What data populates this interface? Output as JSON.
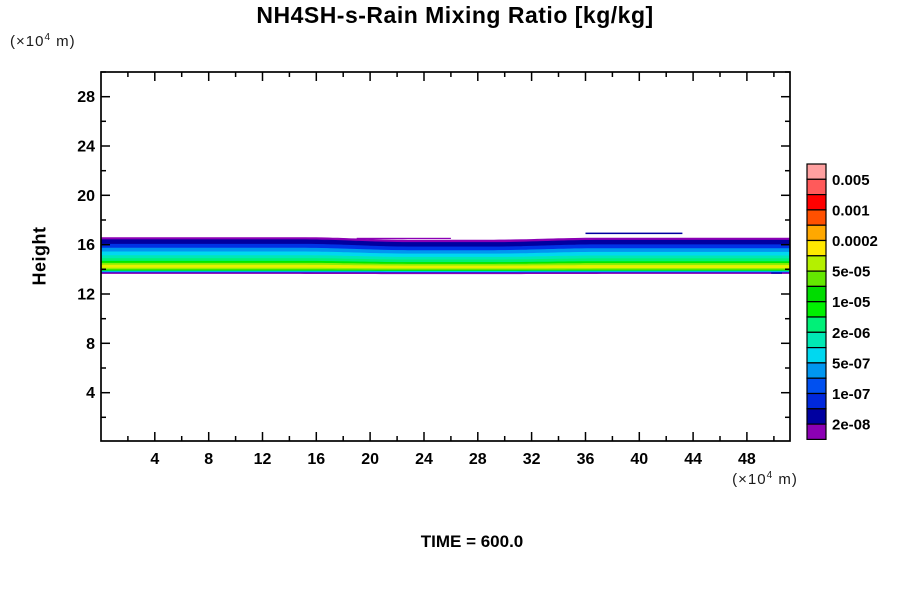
{
  "title": "NH4SH-s-Rain Mixing Ratio [kg/kg]",
  "time_label": "TIME = 600.0",
  "units": {
    "prefix": "(×10",
    "exponent": "4",
    "suffix": " m)"
  },
  "y_axis": {
    "label": "Height"
  },
  "chart_data": {
    "type": "contour",
    "title": "NH4SH-s-Rain Mixing Ratio [kg/kg]",
    "time": 600.0,
    "xlabel_units": "(×10^4 m)",
    "ylabel": "Height",
    "ylabel_units": "(×10^4 m)",
    "x_range": [
      0,
      51.2
    ],
    "y_range": [
      0,
      30
    ],
    "x_major_ticks": [
      4,
      8,
      12,
      16,
      20,
      24,
      28,
      32,
      36,
      40,
      44,
      48
    ],
    "x_minor_ticks": [
      2,
      6,
      10,
      14,
      18,
      22,
      26,
      30,
      34,
      38,
      42,
      46,
      50
    ],
    "y_major_ticks": [
      4,
      8,
      12,
      16,
      20,
      24,
      28
    ],
    "y_minor_ticks": [
      2,
      6,
      10,
      14,
      18,
      22,
      26,
      30
    ],
    "colorbar": {
      "position": "right",
      "labels": [
        "0.005",
        "0.001",
        "0.0002",
        "5e-05",
        "1e-05",
        "2e-06",
        "5e-07",
        "1e-07",
        "2e-08"
      ],
      "label_boundary_indices": [
        1,
        3,
        5,
        7,
        9,
        11,
        13,
        15,
        17
      ],
      "box_colors": [
        "#FFA0A0",
        "#FF5A5A",
        "#FF0000",
        "#FF5000",
        "#FFA800",
        "#FFE800",
        "#B4F000",
        "#64E800",
        "#00DC00",
        "#00F000",
        "#00F078",
        "#00E8B4",
        "#00D8F0",
        "#0096F0",
        "#0050F0",
        "#0028DC",
        "#0000A0",
        "#8C00B4"
      ]
    },
    "band": {
      "x_extent": [
        0,
        51.2
      ],
      "profile_breakpoints": [
        15,
        23,
        29,
        37
      ],
      "boundaries_height": [
        [
          16.58,
          16.38,
          16.54
        ],
        [
          16.4,
          16.18,
          16.36
        ],
        [
          16.04,
          15.82,
          16.0
        ],
        [
          15.72,
          15.53,
          15.69
        ],
        [
          15.42,
          15.25,
          15.39
        ],
        [
          15.12,
          14.98,
          15.1
        ],
        [
          14.88,
          14.77,
          14.86
        ],
        [
          14.66,
          14.56,
          14.63
        ],
        [
          14.5,
          14.42,
          14.48
        ],
        [
          14.34,
          14.28,
          14.32
        ],
        [
          14.1,
          14.06,
          14.08
        ],
        [
          13.97,
          13.95,
          13.96
        ],
        [
          13.86,
          13.85,
          13.86
        ],
        [
          13.78,
          13.77,
          13.78
        ],
        [
          13.72,
          13.71,
          13.72
        ],
        [
          13.65,
          13.64,
          13.65
        ]
      ],
      "layer_colors": [
        "#8C00B4",
        "#0000A0",
        "#0032E6",
        "#0096F0",
        "#00D8F0",
        "#00E8B4",
        "#00F078",
        "#00E800",
        "#8CF000",
        "#E8F000",
        "#96F000",
        "#00E800",
        "#00D8F0",
        "#0032E6",
        "#8C00B4"
      ]
    },
    "fragments": [
      {
        "x1": 36.0,
        "x2": 43.2,
        "y1": 16.98,
        "y2": 16.86,
        "color": "#0000A0"
      },
      {
        "x1": 19.0,
        "x2": 26.0,
        "y1": 16.56,
        "y2": 16.46,
        "color": "#8C00B4"
      },
      {
        "x1": 49.8,
        "x2": 50.6,
        "y1": 13.74,
        "y2": 13.64,
        "color": "#0000A0"
      }
    ]
  }
}
